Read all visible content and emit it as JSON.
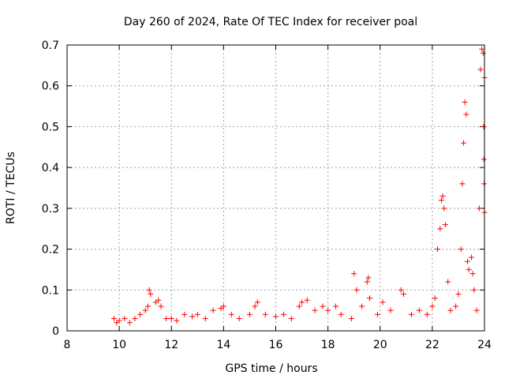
{
  "chart_data": {
    "type": "scatter",
    "title": "Day 260 of 2024, Rate Of TEC Index for receiver poal",
    "xlabel": "GPS time / hours",
    "ylabel": "ROTI / TECUs",
    "xlim": [
      8,
      24
    ],
    "ylim": [
      0,
      0.7
    ],
    "xticks": [
      "8",
      "10",
      "12",
      "14",
      "16",
      "18",
      "20",
      "22",
      "24"
    ],
    "yticks": [
      "0",
      "0.1",
      "0.2",
      "0.3",
      "0.4",
      "0.5",
      "0.6",
      "0.7"
    ],
    "grid": true,
    "legend": "none",
    "marker": "+",
    "color": "#ff0000",
    "series": [
      {
        "points": [
          [
            9.8,
            0.03
          ],
          [
            9.9,
            0.02
          ],
          [
            10.0,
            0.025
          ],
          [
            10.2,
            0.03
          ],
          [
            10.4,
            0.02
          ],
          [
            10.6,
            0.03
          ],
          [
            10.8,
            0.04
          ],
          [
            11.0,
            0.05
          ],
          [
            11.1,
            0.06
          ],
          [
            11.15,
            0.1
          ],
          [
            11.2,
            0.09
          ],
          [
            11.4,
            0.07
          ],
          [
            11.5,
            0.075
          ],
          [
            11.6,
            0.06
          ],
          [
            11.8,
            0.03
          ],
          [
            12.0,
            0.03
          ],
          [
            12.2,
            0.025
          ],
          [
            12.5,
            0.04
          ],
          [
            12.8,
            0.035
          ],
          [
            13.0,
            0.04
          ],
          [
            13.3,
            0.03
          ],
          [
            13.6,
            0.05
          ],
          [
            13.9,
            0.055
          ],
          [
            14.0,
            0.06
          ],
          [
            14.3,
            0.04
          ],
          [
            14.6,
            0.03
          ],
          [
            15.0,
            0.04
          ],
          [
            15.2,
            0.06
          ],
          [
            15.3,
            0.07
          ],
          [
            15.6,
            0.04
          ],
          [
            16.0,
            0.035
          ],
          [
            16.3,
            0.04
          ],
          [
            16.6,
            0.03
          ],
          [
            16.9,
            0.06
          ],
          [
            17.0,
            0.07
          ],
          [
            17.2,
            0.075
          ],
          [
            17.5,
            0.05
          ],
          [
            17.8,
            0.06
          ],
          [
            18.0,
            0.05
          ],
          [
            18.3,
            0.06
          ],
          [
            18.5,
            0.04
          ],
          [
            18.9,
            0.03
          ],
          [
            19.0,
            0.14
          ],
          [
            19.1,
            0.1
          ],
          [
            19.3,
            0.06
          ],
          [
            19.5,
            0.12
          ],
          [
            19.55,
            0.13
          ],
          [
            19.6,
            0.08
          ],
          [
            19.9,
            0.04
          ],
          [
            20.1,
            0.07
          ],
          [
            20.4,
            0.05
          ],
          [
            20.8,
            0.1
          ],
          [
            20.9,
            0.09
          ],
          [
            21.2,
            0.04
          ],
          [
            21.5,
            0.05
          ],
          [
            21.8,
            0.04
          ],
          [
            22.0,
            0.06
          ],
          [
            22.1,
            0.08
          ],
          [
            22.2,
            0.2
          ],
          [
            22.3,
            0.25
          ],
          [
            22.35,
            0.32
          ],
          [
            22.4,
            0.33
          ],
          [
            22.45,
            0.3
          ],
          [
            22.5,
            0.26
          ],
          [
            22.6,
            0.12
          ],
          [
            22.7,
            0.05
          ],
          [
            22.9,
            0.06
          ],
          [
            23.0,
            0.09
          ],
          [
            23.1,
            0.2
          ],
          [
            23.15,
            0.36
          ],
          [
            23.2,
            0.46
          ],
          [
            23.25,
            0.56
          ],
          [
            23.3,
            0.53
          ],
          [
            23.35,
            0.17
          ],
          [
            23.4,
            0.15
          ],
          [
            23.5,
            0.18
          ],
          [
            23.55,
            0.14
          ],
          [
            23.6,
            0.1
          ],
          [
            23.7,
            0.05
          ],
          [
            23.8,
            0.3
          ],
          [
            23.85,
            0.64
          ],
          [
            23.9,
            0.69
          ],
          [
            23.95,
            0.68
          ],
          [
            24.0,
            0.62
          ],
          [
            23.97,
            0.5
          ],
          [
            23.98,
            0.42
          ],
          [
            23.99,
            0.36
          ],
          [
            24.0,
            0.29
          ]
        ]
      }
    ]
  }
}
